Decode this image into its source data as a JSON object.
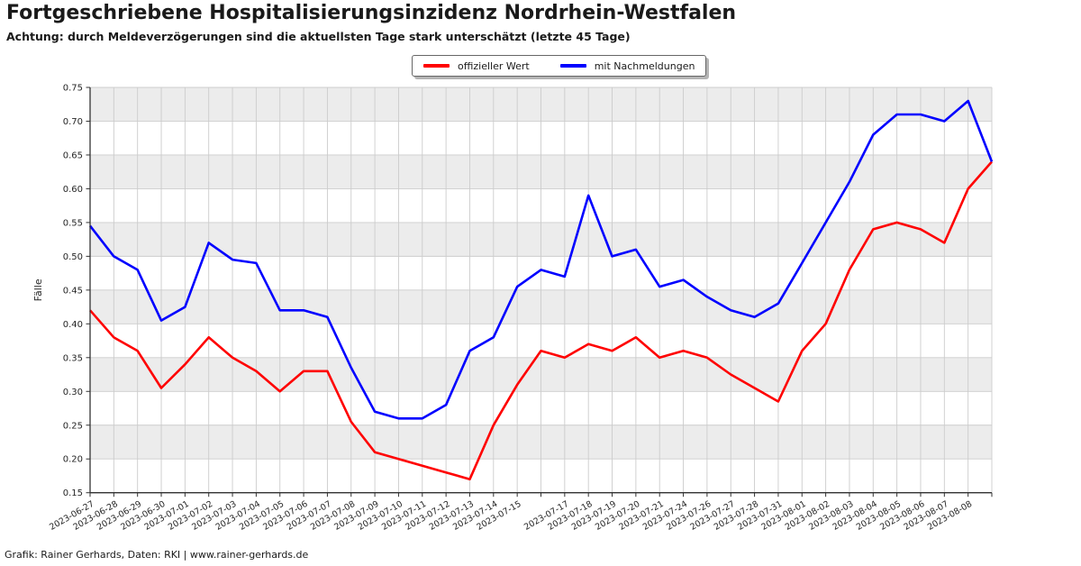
{
  "title": "Fortgeschriebene Hospitalisierungsinzidenz Nordrhein-Westfalen",
  "subtitle": "Achtung: durch Meldeverzögerungen sind die aktuellsten Tage stark unterschätzt (letzte 45 Tage)",
  "footer": "Grafik: Rainer Gerhards, Daten: RKI | www.rainer-gerhards.de",
  "legend": [
    {
      "label": "offizieller Wert",
      "color": "#ff0000"
    },
    {
      "label": "mit Nachmeldungen",
      "color": "#0000ff"
    }
  ],
  "chart_data": {
    "type": "line",
    "title": "Fortgeschriebene Hospitalisierungsinzidenz Nordrhein-Westfalen",
    "xlabel": "",
    "ylabel": "Fälle",
    "ylim": [
      0.15,
      0.75
    ],
    "ytick_step": 0.05,
    "grid": true,
    "legend_position": "top-center",
    "band_color": "#ececec",
    "grid_color": "#cccccc",
    "axis_color": "#333333",
    "text_color": "#262626",
    "categories": [
      "2023-06-27",
      "2023-06-28",
      "2023-06-29",
      "2023-06-30",
      "2023-07-01",
      "2023-07-02",
      "2023-07-03",
      "2023-07-04",
      "2023-07-05",
      "2023-07-06",
      "2023-07-07",
      "2023-07-08",
      "2023-07-09",
      "2023-07-10",
      "2023-07-11",
      "2023-07-12",
      "2023-07-13",
      "2023-07-14",
      "2023-07-15",
      "",
      "2023-07-17",
      "2023-07-18",
      "2023-07-19",
      "2023-07-20",
      "2023-07-21",
      "2023-07-24",
      "2023-07-26",
      "2023-07-27",
      "2023-07-28",
      "2023-07-31",
      "2023-08-01",
      "2023-08-02",
      "2023-08-03",
      "2023-08-04",
      "2023-08-05",
      "2023-08-06",
      "2023-08-07",
      "2023-08-08",
      ""
    ],
    "series": [
      {
        "name": "offizieller Wert",
        "color": "#ff0000",
        "values": [
          0.42,
          0.38,
          0.36,
          0.305,
          0.34,
          0.38,
          0.35,
          0.33,
          0.3,
          0.33,
          0.33,
          0.255,
          0.21,
          0.2,
          0.19,
          0.18,
          0.17,
          0.25,
          0.31,
          0.36,
          0.35,
          0.37,
          0.36,
          0.38,
          0.35,
          0.36,
          0.35,
          0.325,
          0.305,
          0.285,
          0.36,
          0.4,
          0.48,
          0.54,
          0.55,
          0.54,
          0.52,
          0.6,
          0.64
        ]
      },
      {
        "name": "mit Nachmeldungen",
        "color": "#0000ff",
        "values": [
          0.545,
          0.5,
          0.48,
          0.405,
          0.425,
          0.52,
          0.495,
          0.49,
          0.42,
          0.42,
          0.41,
          0.335,
          0.27,
          0.26,
          0.26,
          0.28,
          0.36,
          0.38,
          0.455,
          0.48,
          0.47,
          0.59,
          0.5,
          0.51,
          0.455,
          0.465,
          0.44,
          0.42,
          0.41,
          0.43,
          0.49,
          0.55,
          0.61,
          0.68,
          0.71,
          0.71,
          0.7,
          0.73,
          0.64
        ]
      }
    ]
  }
}
